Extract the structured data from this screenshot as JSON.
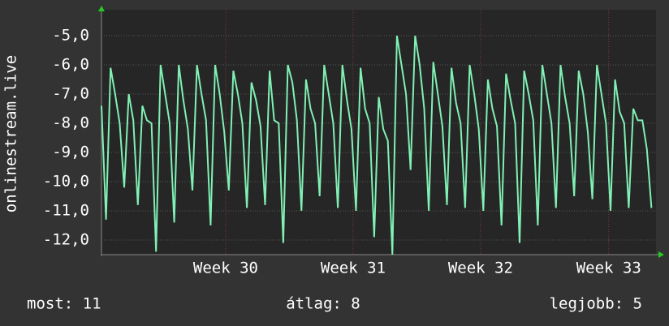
{
  "chart_data": {
    "type": "line",
    "ylabel": "onlinestream.live",
    "color": "#80f0b4",
    "grid": true,
    "xlim": [
      0,
      30.5
    ],
    "xticks": [
      {
        "value": 6.83,
        "label": "Week 30"
      },
      {
        "value": 13.84,
        "label": "Week 31"
      },
      {
        "value": 20.85,
        "label": "Week 32"
      },
      {
        "value": 27.9,
        "label": "Week 33"
      }
    ],
    "ylim": [
      -12.5,
      -4.11
    ],
    "yticks": [
      {
        "value": -5,
        "label": "-5,0"
      },
      {
        "value": -6,
        "label": "-6,0"
      },
      {
        "value": -7,
        "label": "-7,0"
      },
      {
        "value": -8,
        "label": "-8,0"
      },
      {
        "value": -9,
        "label": "-9,0"
      },
      {
        "value": -10,
        "label": "-10,0"
      },
      {
        "value": -11,
        "label": "-11,0"
      },
      {
        "value": -12,
        "label": "-12,0"
      }
    ],
    "x": [
      0,
      0.25,
      0.5,
      0.75,
      1,
      1.25,
      1.5,
      1.75,
      2,
      2.25,
      2.5,
      2.75,
      3,
      3.25,
      3.5,
      3.75,
      4,
      4.25,
      4.5,
      4.75,
      5,
      5.25,
      5.5,
      5.75,
      6,
      6.25,
      6.5,
      6.75,
      7,
      7.25,
      7.5,
      7.75,
      8,
      8.25,
      8.5,
      8.75,
      9,
      9.25,
      9.5,
      9.75,
      10,
      10.25,
      10.5,
      10.75,
      11,
      11.25,
      11.5,
      11.75,
      12,
      12.25,
      12.5,
      12.75,
      13,
      13.25,
      13.5,
      13.75,
      14,
      14.25,
      14.5,
      14.75,
      15,
      15.25,
      15.5,
      15.75,
      16,
      16.25,
      16.5,
      16.75,
      17,
      17.25,
      17.5,
      17.75,
      18,
      18.25,
      18.5,
      18.75,
      19,
      19.25,
      19.5,
      19.75,
      20,
      20.25,
      20.5,
      20.75,
      21,
      21.25,
      21.5,
      21.75,
      22,
      22.25,
      22.5,
      22.75,
      23,
      23.25,
      23.5,
      23.75,
      24,
      24.25,
      24.5,
      24.75,
      25,
      25.25,
      25.5,
      25.75,
      26,
      26.25,
      26.5,
      26.75,
      27,
      27.25,
      27.5,
      27.75,
      28,
      28.25,
      28.5,
      28.75,
      29,
      29.25,
      29.5,
      29.75,
      30,
      30.25
    ],
    "values": [
      -7.4,
      -11.3,
      -6.1,
      -7.0,
      -8.0,
      -10.2,
      -7.0,
      -7.9,
      -10.8,
      -7.4,
      -7.9,
      -8.0,
      -12.4,
      -6.0,
      -7.0,
      -8.0,
      -11.4,
      -6.0,
      -7.2,
      -8.2,
      -10.3,
      -6.0,
      -7.0,
      -7.9,
      -11.5,
      -6.0,
      -7.0,
      -8.3,
      -10.3,
      -6.2,
      -7.0,
      -8.0,
      -10.9,
      -6.6,
      -7.2,
      -8.1,
      -10.8,
      -6.2,
      -7.9,
      -8.0,
      -12.1,
      -6.0,
      -6.6,
      -7.9,
      -11.0,
      -6.5,
      -7.5,
      -8.0,
      -10.5,
      -6.0,
      -7.0,
      -8.0,
      -10.9,
      -6.0,
      -7.2,
      -8.2,
      -11.0,
      -6.1,
      -7.5,
      -8.0,
      -11.9,
      -7.1,
      -8.2,
      -8.6,
      -12.5,
      -5.0,
      -6.0,
      -7.0,
      -9.6,
      -5.0,
      -6.0,
      -7.5,
      -11.0,
      -5.9,
      -7.0,
      -8.1,
      -10.8,
      -6.1,
      -7.3,
      -8.0,
      -10.9,
      -6.0,
      -7.0,
      -8.2,
      -11.0,
      -6.5,
      -7.5,
      -8.1,
      -11.5,
      -6.3,
      -7.2,
      -8.0,
      -12.1,
      -6.2,
      -7.0,
      -7.9,
      -11.5,
      -6.0,
      -7.0,
      -8.0,
      -10.9,
      -6.0,
      -7.1,
      -8.0,
      -10.5,
      -6.2,
      -7.0,
      -8.3,
      -10.6,
      -6.0,
      -7.0,
      -8.0,
      -11.0,
      -6.5,
      -7.6,
      -8.0,
      -10.9,
      -7.5,
      -7.9,
      -7.9,
      -8.9,
      -10.9
    ],
    "stats": [
      "most: 11",
      "átlag: 8",
      "legjobb: 5"
    ]
  }
}
